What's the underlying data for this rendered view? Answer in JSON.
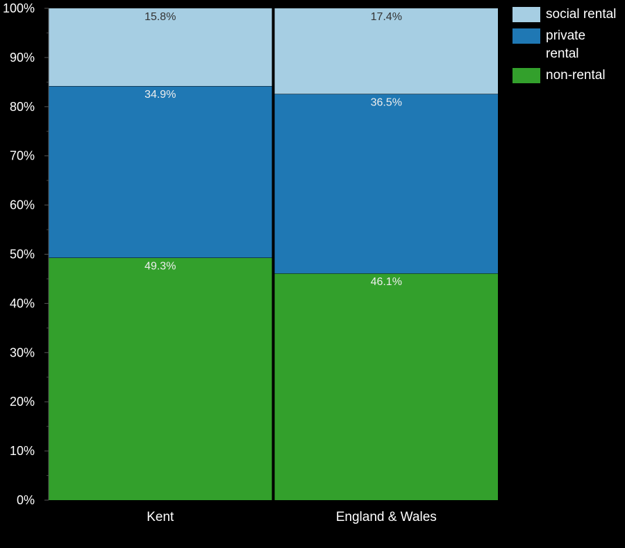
{
  "chart_data": {
    "type": "bar",
    "stacked": true,
    "categories": [
      "Kent",
      "England & Wales"
    ],
    "series": [
      {
        "name": "non-rental",
        "color": "#33a02c",
        "values": [
          49.3,
          46.1
        ],
        "labels": [
          "49.3%",
          "46.1%"
        ]
      },
      {
        "name": "private rental",
        "color": "#1f78b4",
        "values": [
          34.9,
          36.5
        ],
        "labels": [
          "34.9%",
          "36.5%"
        ]
      },
      {
        "name": "social rental",
        "color": "#a6cee3",
        "values": [
          15.8,
          17.4
        ],
        "labels": [
          "15.8%",
          "17.4%"
        ]
      }
    ],
    "ylim": [
      0,
      100
    ],
    "yticks": [
      "0%",
      "10%",
      "20%",
      "30%",
      "40%",
      "50%",
      "60%",
      "70%",
      "80%",
      "90%",
      "100%"
    ],
    "legend_position": "top-right",
    "grid": false
  },
  "legend": [
    {
      "label": "social rental",
      "color": "#a6cee3"
    },
    {
      "label": "private rental",
      "color": "#1f78b4"
    },
    {
      "label": "non-rental",
      "color": "#33a02c"
    }
  ]
}
